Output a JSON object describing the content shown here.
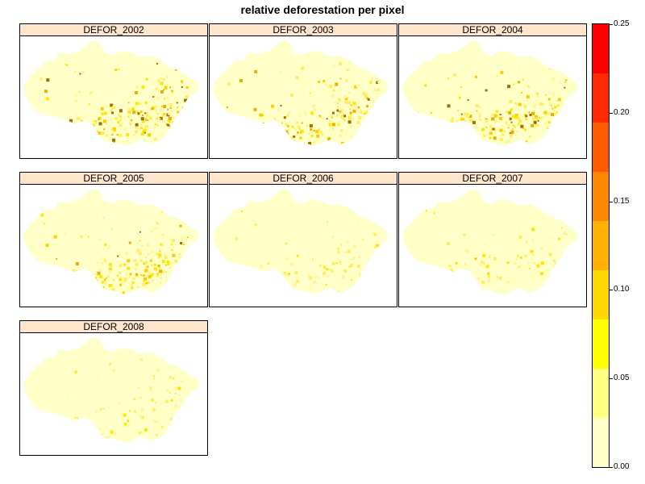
{
  "title": "relative deforestation per pixel",
  "panels": [
    {
      "label": "DEFOR_2002",
      "intensity": 0.9
    },
    {
      "label": "DEFOR_2003",
      "intensity": 0.85
    },
    {
      "label": "DEFOR_2004",
      "intensity": 0.9
    },
    {
      "label": "DEFOR_2005",
      "intensity": 0.75
    },
    {
      "label": "DEFOR_2006",
      "intensity": 0.3
    },
    {
      "label": "DEFOR_2007",
      "intensity": 0.35
    },
    {
      "label": "DEFOR_2008",
      "intensity": 0.3
    }
  ],
  "colorkey": {
    "min": 0,
    "max": 0.25,
    "ticks": [
      "0.00",
      "0.05",
      "0.10",
      "0.15",
      "0.20",
      "0.25"
    ],
    "colors": [
      "#ffffc8",
      "#ffff80",
      "#ffff00",
      "#ffd800",
      "#ffb000",
      "#ff8800",
      "#ff5a00",
      "#ff2a00",
      "#ff0000"
    ],
    "background_fill": "#ffffc8"
  }
}
